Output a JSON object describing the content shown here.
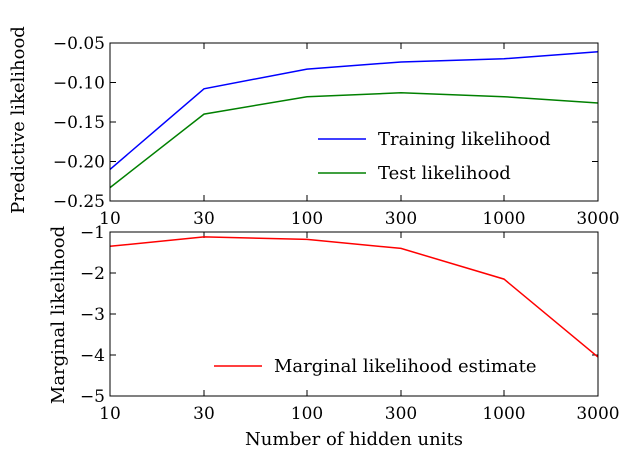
{
  "chart_data": [
    {
      "type": "line",
      "x": [
        "10",
        "30",
        "100",
        "300",
        "1000",
        "3000"
      ],
      "xscale": "log",
      "ylabel": "Predictive likelihood",
      "ylim": [
        -0.25,
        -0.05
      ],
      "yticks": [
        "−0.05",
        "−0.10",
        "−0.15",
        "−0.20",
        "−0.25"
      ],
      "ytick_values": [
        -0.05,
        -0.1,
        -0.15,
        -0.2,
        -0.25
      ],
      "grid": false,
      "legend_position": "lower-right",
      "series": [
        {
          "name": "Training likelihood",
          "color": "#0000ff",
          "values": [
            -0.21,
            -0.108,
            -0.083,
            -0.074,
            -0.07,
            -0.061
          ]
        },
        {
          "name": "Test likelihood",
          "color": "#008000",
          "values": [
            -0.233,
            -0.14,
            -0.118,
            -0.113,
            -0.118,
            -0.126
          ]
        }
      ]
    },
    {
      "type": "line",
      "x": [
        "10",
        "30",
        "100",
        "300",
        "1000",
        "3000"
      ],
      "xscale": "log",
      "xlabel": "Number of hidden units",
      "ylabel": "Marginal likelihood",
      "ylim": [
        -5,
        -1
      ],
      "yticks": [
        "−1",
        "−2",
        "−3",
        "−4",
        "−5"
      ],
      "ytick_values": [
        -1,
        -2,
        -3,
        -4,
        -5
      ],
      "grid": false,
      "legend_position": "lower-right",
      "series": [
        {
          "name": "Marginal likelihood estimate",
          "color": "#ff0000",
          "values": [
            -1.35,
            -1.12,
            -1.18,
            -1.4,
            -2.15,
            -4.05
          ]
        }
      ]
    }
  ]
}
